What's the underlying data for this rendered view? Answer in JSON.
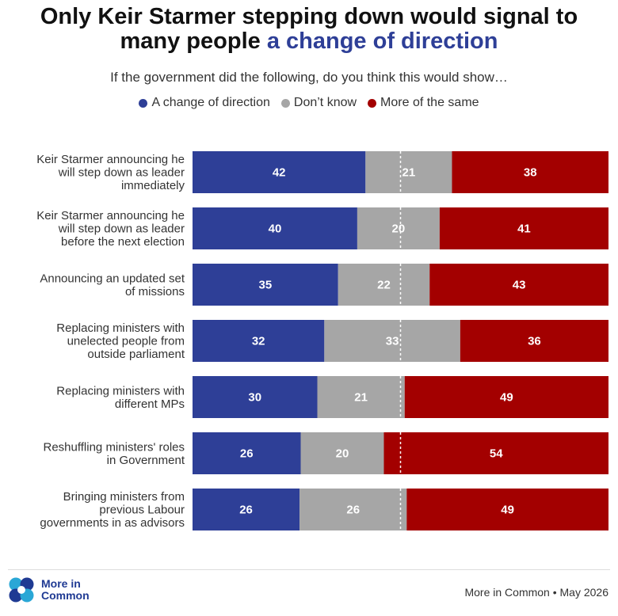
{
  "title": {
    "line1": "Only Keir Starmer stepping down would signal to",
    "line2_plain": "many people",
    "line2_accent": "a change of direction"
  },
  "subtitle": "If the government did the following, do you think this would show…",
  "legend": [
    {
      "label": "A change of direction",
      "color": "#2e3f97"
    },
    {
      "label": "Don’t know",
      "color": "#a6a6a6"
    },
    {
      "label": "More of the same",
      "color": "#a30000"
    }
  ],
  "chart_data": {
    "type": "bar",
    "orientation": "horizontal",
    "stacked": true,
    "normalized": true,
    "categories": [
      [
        "Keir Starmer announcing he",
        "will step down as leader",
        "immediately"
      ],
      [
        "Keir Starmer announcing he",
        "will step down as leader",
        "before the next election"
      ],
      [
        "Announcing an updated set",
        "of missions"
      ],
      [
        "Replacing ministers with",
        "unelected people from",
        "outside parliament"
      ],
      [
        "Replacing ministers with",
        "different MPs"
      ],
      [
        "Reshuffling ministers' roles",
        "in Government"
      ],
      [
        "Bringing ministers from",
        "previous Labour",
        "governments in as advisors"
      ]
    ],
    "series": [
      {
        "name": "A change of direction",
        "color": "#2e3f97",
        "values": [
          42,
          40,
          35,
          32,
          30,
          26,
          26
        ]
      },
      {
        "name": "Don’t know",
        "color": "#a6a6a6",
        "values": [
          21,
          20,
          22,
          33,
          21,
          20,
          26
        ]
      },
      {
        "name": "More of the same",
        "color": "#a30000",
        "values": [
          38,
          41,
          43,
          36,
          49,
          54,
          49
        ]
      }
    ],
    "reference_line": "dotted midpoint marker at 50%",
    "grid": false,
    "legend_position": "top"
  },
  "footer": {
    "logo_line1": "More in",
    "logo_line2": "Common",
    "source": "More in Common • May 2026"
  }
}
